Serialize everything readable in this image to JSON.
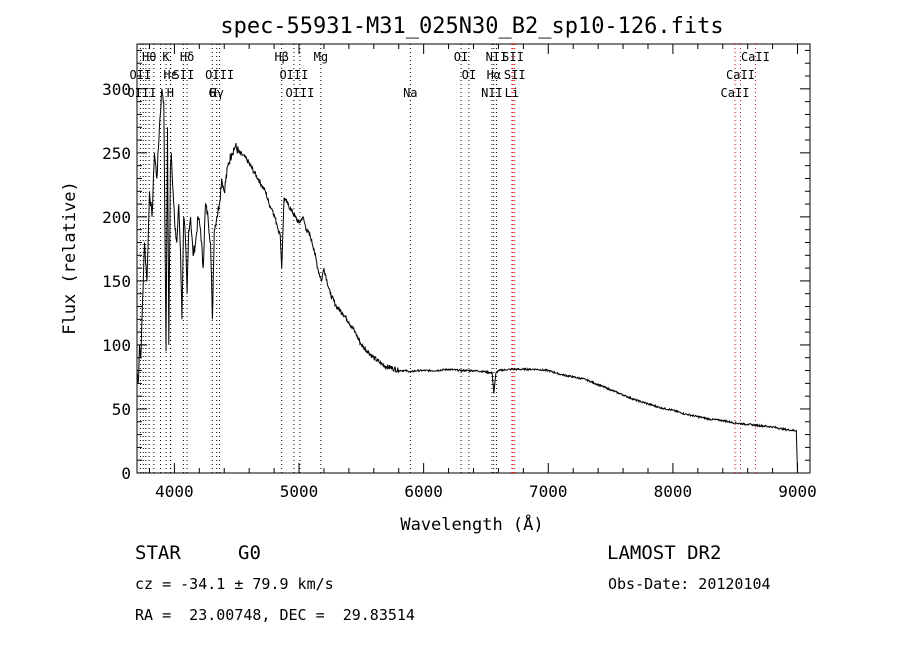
{
  "chart_data": {
    "type": "line",
    "title": "spec-55931-M31_025N30_B2_sp10-126.fits",
    "xlabel": "Wavelength (Å)",
    "ylabel": "Flux (relative)",
    "xlim": [
      3700,
      9100
    ],
    "ylim": [
      0,
      335
    ],
    "xticks": [
      4000,
      5000,
      6000,
      7000,
      8000,
      9000
    ],
    "yticks": [
      0,
      50,
      100,
      150,
      200,
      250,
      300
    ],
    "grid": false,
    "series": [
      {
        "x": [
          3700,
          3710,
          3720,
          3730,
          3740,
          3760,
          3780,
          3800,
          3820,
          3840,
          3860,
          3880,
          3900,
          3915,
          3933,
          3945,
          3955,
          3968,
          3975,
          3990,
          4005,
          4020,
          4035,
          4050,
          4060,
          4075,
          4090,
          4102,
          4115,
          4130,
          4150,
          4170,
          4190,
          4210,
          4230,
          4250,
          4270,
          4290,
          4305,
          4320,
          4340,
          4360,
          4380,
          4400,
          4430,
          4460,
          4490,
          4520,
          4550,
          4580,
          4610,
          4640,
          4670,
          4700,
          4730,
          4760,
          4790,
          4820,
          4850,
          4861,
          4880,
          4910,
          4940,
          4970,
          5000,
          5030,
          5060,
          5090,
          5120,
          5150,
          5180,
          5200,
          5250,
          5300,
          5350,
          5400,
          5450,
          5500,
          5550,
          5600,
          5650,
          5700,
          5750,
          5800,
          5850,
          5900,
          5950,
          6000,
          6100,
          6200,
          6300,
          6400,
          6500,
          6550,
          6563,
          6580,
          6600,
          6700,
          6800,
          6900,
          7000,
          7100,
          7200,
          7300,
          7400,
          7500,
          7600,
          7700,
          7800,
          7900,
          8000,
          8100,
          8200,
          8300,
          8400,
          8500,
          8600,
          8700,
          8800,
          8900,
          8990,
          9000
        ],
        "y": [
          80,
          70,
          100,
          90,
          120,
          180,
          150,
          220,
          200,
          250,
          230,
          270,
          300,
          290,
          95,
          270,
          100,
          240,
          250,
          220,
          190,
          180,
          210,
          170,
          120,
          200,
          180,
          140,
          190,
          200,
          170,
          180,
          200,
          190,
          160,
          210,
          200,
          180,
          120,
          190,
          200,
          210,
          230,
          220,
          240,
          250,
          255,
          250,
          248,
          245,
          240,
          235,
          230,
          225,
          220,
          210,
          205,
          195,
          185,
          160,
          215,
          210,
          205,
          200,
          195,
          200,
          190,
          185,
          175,
          160,
          150,
          160,
          140,
          130,
          125,
          118,
          110,
          100,
          95,
          90,
          86,
          83,
          82,
          80,
          80,
          79,
          80,
          80,
          80,
          81,
          80,
          80,
          79,
          78,
          62,
          78,
          80,
          81,
          81,
          81,
          80,
          77,
          75,
          73,
          69,
          65,
          61,
          57,
          54,
          51,
          49,
          46,
          44,
          42,
          41,
          39,
          38,
          37,
          36,
          34,
          33,
          0
        ]
      }
    ],
    "lines_top": [
      {
        "label": "Hθ",
        "x": 3798,
        "row": 0
      },
      {
        "label": "K",
        "x": 3933,
        "row": 0
      },
      {
        "label": "Hδ",
        "x": 4102,
        "row": 0
      },
      {
        "label": "Hβ",
        "x": 4861,
        "row": 0
      },
      {
        "label": "Mg",
        "x": 5175,
        "row": 0
      },
      {
        "label": "OI",
        "x": 6300,
        "row": 0
      },
      {
        "label": "NII",
        "x": 6584,
        "row": 0
      },
      {
        "label": "SII",
        "x": 6717,
        "row": 0
      },
      {
        "label": "CaII",
        "x": 8662,
        "row": 0
      },
      {
        "label": "OII",
        "x": 3727,
        "row": 1
      },
      {
        "label": "Hε",
        "x": 3970,
        "row": 1
      },
      {
        "label": "SII",
        "x": 4072,
        "row": 1
      },
      {
        "label": "OIII",
        "x": 4363,
        "row": 1
      },
      {
        "label": "OIII",
        "x": 4959,
        "row": 1
      },
      {
        "label": "OI",
        "x": 6363,
        "row": 1
      },
      {
        "label": "Hα",
        "x": 6563,
        "row": 1
      },
      {
        "label": "SII",
        "x": 6731,
        "row": 1
      },
      {
        "label": "CaII",
        "x": 8542,
        "row": 1
      },
      {
        "label": "OIII",
        "x": 3740,
        "row": 2
      },
      {
        "label": "Hγ",
        "x": 4340,
        "row": 2
      },
      {
        "label": "H",
        "x": 3968,
        "row": 2
      },
      {
        "label": "G",
        "x": 4304,
        "row": 2
      },
      {
        "label": "OIII",
        "x": 5007,
        "row": 2
      },
      {
        "label": "Na",
        "x": 5893,
        "row": 2
      },
      {
        "label": "NII",
        "x": 6548,
        "row": 2
      },
      {
        "label": "Li",
        "x": 6708,
        "row": 2
      },
      {
        "label": "CaII",
        "x": 8498,
        "row": 2
      }
    ],
    "line_markers_black": [
      3727,
      3750,
      3771,
      3798,
      3835,
      3889,
      3933,
      3968,
      3970,
      4072,
      4102,
      4304,
      4340,
      4363,
      4861,
      4959,
      5007,
      5175,
      5893,
      6300,
      6363,
      6548,
      6563,
      6584
    ],
    "line_markers_red": [
      6708,
      6717,
      6731,
      8498,
      8542,
      8662
    ]
  },
  "info": {
    "object_class": "STAR",
    "subclass": "G0",
    "survey": "LAMOST DR2",
    "cz": "cz = -34.1 ± 79.9 km/s",
    "obs_date": "Obs-Date: 20120104",
    "radec": "RA =  23.00748, DEC =  29.83514"
  }
}
